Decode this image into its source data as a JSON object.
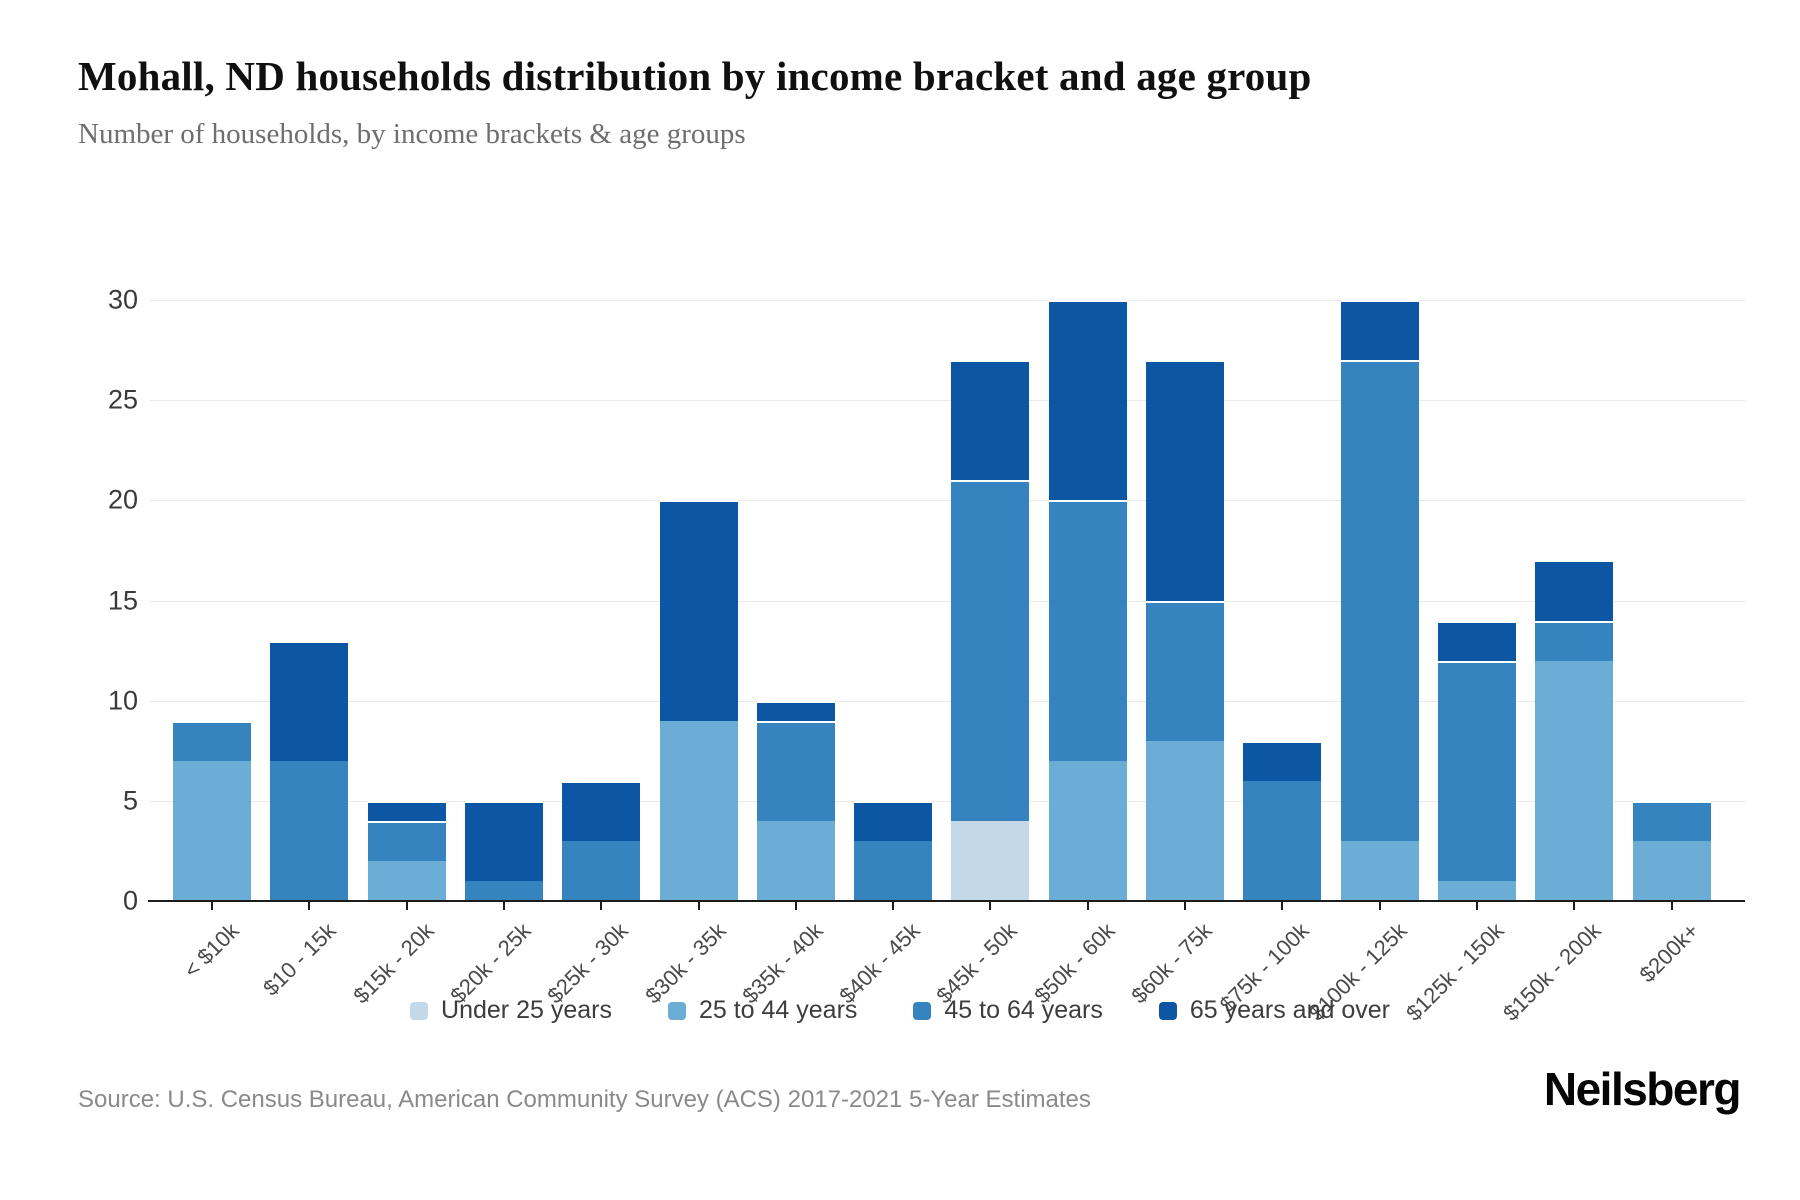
{
  "header": {
    "title": "Mohall, ND households distribution by income bracket and age group",
    "subtitle": "Number of households, by income brackets & age groups"
  },
  "chart_data": {
    "type": "bar",
    "stacked": true,
    "title": "Mohall, ND households distribution by income bracket and age group",
    "subtitle": "Number of households, by income brackets & age groups",
    "xlabel": "",
    "ylabel": "",
    "ylim": [
      0,
      30
    ],
    "yticks": [
      0,
      5,
      10,
      15,
      20,
      25,
      30
    ],
    "grid": "horizontal",
    "legend_position": "bottom",
    "categories": [
      "< $10k",
      "$10 - 15k",
      "$15k - 20k",
      "$20k - 25k",
      "$25k - 30k",
      "$30k - 35k",
      "$35k - 40k",
      "$40k - 45k",
      "$45k - 50k",
      "$50k - 60k",
      "$60k - 75k",
      "$75k - 100k",
      "$100k - 125k",
      "$125k - 150k",
      "$150k - 200k",
      "$200k+"
    ],
    "series": [
      {
        "name": "Under 25 years",
        "color": "#c3d9ea",
        "values": [
          0,
          0,
          0,
          0,
          0,
          0,
          0,
          0,
          4,
          0,
          0,
          0,
          0,
          0,
          0,
          0
        ]
      },
      {
        "name": "25 to 44 years",
        "color": "#6cadd6",
        "values": [
          7,
          0,
          2,
          0,
          0,
          9,
          4,
          0,
          0,
          7,
          8,
          0,
          3,
          1,
          12,
          3
        ]
      },
      {
        "name": "45 to 64 years",
        "color": "#3583bf",
        "values": [
          2,
          7,
          2,
          1,
          3,
          0,
          5,
          3,
          17,
          13,
          7,
          6,
          24,
          11,
          2,
          2
        ]
      },
      {
        "name": "65 years and over",
        "color": "#0d56a3",
        "values": [
          0,
          6,
          1,
          4,
          3,
          11,
          1,
          2,
          6,
          10,
          12,
          2,
          3,
          2,
          3,
          0
        ]
      }
    ],
    "totals": [
      9,
      13,
      5,
      5,
      6,
      20,
      10,
      5,
      27,
      30,
      27,
      8,
      30,
      14,
      17,
      5
    ]
  },
  "footer": {
    "source": "Source: U.S. Census Bureau, American Community Survey (ACS) 2017-2021 5-Year Estimates",
    "brand": "Neilsberg"
  }
}
